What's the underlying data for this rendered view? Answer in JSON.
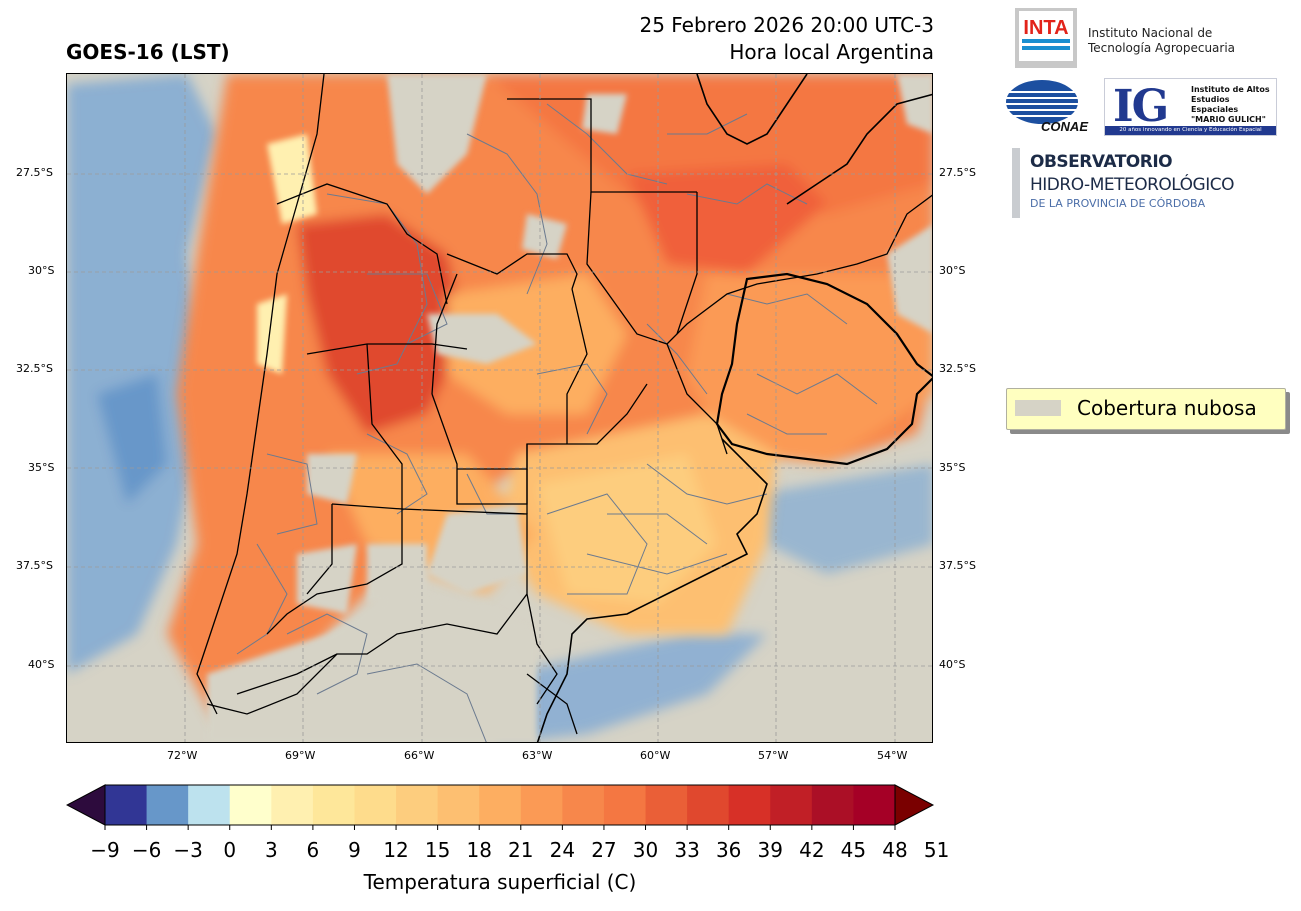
{
  "header": {
    "left_title": "GOES-16 (LST)",
    "date_line": "25 Febrero 2026 20:00 UTC-3",
    "local_line": "Hora local Argentina"
  },
  "map": {
    "lat_labels": [
      "27.5°S",
      "30°S",
      "32.5°S",
      "35°S",
      "37.5°S",
      "40°S"
    ],
    "lon_labels": [
      "72°W",
      "69°W",
      "66°W",
      "63°W",
      "60°W",
      "57°W",
      "54°W"
    ],
    "cloud_color": "#d6d3c6",
    "province_border_color": "#000000",
    "department_border_color": "#6b7a8f"
  },
  "colorbar": {
    "ticks": [
      "−9",
      "−6",
      "−3",
      "0",
      "3",
      "6",
      "9",
      "12",
      "15",
      "18",
      "21",
      "24",
      "27",
      "30",
      "33",
      "36",
      "39",
      "42",
      "45",
      "48",
      "51"
    ],
    "colors": [
      "#313695",
      "#6797c9",
      "#bde2ee",
      "#ffffcc",
      "#fff0b0",
      "#fee79a",
      "#fedc8c",
      "#fdcd7e",
      "#fdbf71",
      "#fdae61",
      "#fb9a55",
      "#f7874b",
      "#f47742",
      "#ea5f37",
      "#e0482e",
      "#d73027",
      "#c11f26",
      "#ab0f26",
      "#a50026"
    ],
    "under_color": "#2d0b3d",
    "over_color": "#7a0000",
    "label": "Temperatura superficial (C)"
  },
  "legend": {
    "label": "Cobertura nubosa"
  },
  "logos": {
    "inta_mark": "INTA",
    "inta_line1": "Instituto Nacional de",
    "inta_line2": "Tecnología Agropecuaria",
    "conae": "CONAE",
    "ig_mark": "IG",
    "ig_line1": "Instituto de Altos",
    "ig_line2": "Estudios Espaciales",
    "ig_line3": "\"MARIO GULICH\"",
    "ig_band": "20 años innovando en Ciencia y Educación Espacial",
    "obs_line1": "OBSERVATORIO",
    "obs_line2": "HIDRO-METEOROLÓGICO",
    "obs_line3": "DE LA PROVINCIA DE CÓRDOBA"
  }
}
